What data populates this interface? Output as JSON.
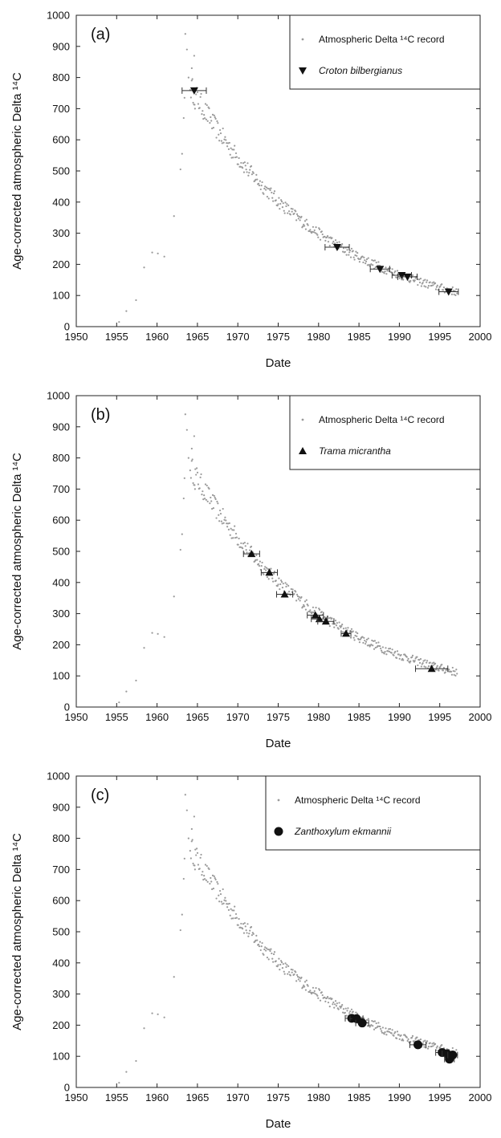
{
  "chart_data": [
    {
      "type": "scatter",
      "panel_label": "(a)",
      "xlabel": "Date",
      "ylabel": "Age-corrected atmospheric Delta ¹⁴C",
      "xlim": [
        1950,
        2000
      ],
      "ylim": [
        0,
        1000
      ],
      "x_ticks": [
        "1950",
        "1955",
        "1960",
        "1965",
        "1970",
        "1975",
        "1980",
        "1985",
        "1990",
        "1995",
        "2000"
      ],
      "y_ticks": [
        "0",
        "100",
        "200",
        "300",
        "400",
        "500",
        "600",
        "700",
        "800",
        "900",
        "1000"
      ],
      "legend": {
        "placement": "top-right",
        "record_label": "Atmospheric Delta ¹⁴C record",
        "species_label": "Croton bilbergianus",
        "marker": "triangle-down"
      },
      "series": [
        {
          "name": "Croton bilbergianus",
          "marker": "triangle-down",
          "points": [
            {
              "x": 1964.6,
              "y": 758,
              "xerr": 1.5
            },
            {
              "x": 1982.3,
              "y": 255,
              "xerr": 1.5
            },
            {
              "x": 1987.6,
              "y": 185,
              "xerr": 1.2
            },
            {
              "x": 1990.3,
              "y": 165,
              "xerr": 1.2
            },
            {
              "x": 1991.0,
              "y": 160,
              "xerr": 1.2
            },
            {
              "x": 1996.1,
              "y": 112,
              "xerr": 1.2
            }
          ]
        }
      ]
    },
    {
      "type": "scatter",
      "panel_label": "(b)",
      "xlabel": "Date",
      "ylabel": "Age-corrected atmospheric Delta ¹⁴C",
      "xlim": [
        1950,
        2000
      ],
      "ylim": [
        0,
        1000
      ],
      "x_ticks": [
        "1950",
        "1955",
        "1960",
        "1965",
        "1970",
        "1975",
        "1980",
        "1985",
        "1990",
        "1995",
        "2000"
      ],
      "y_ticks": [
        "0",
        "100",
        "200",
        "300",
        "400",
        "500",
        "600",
        "700",
        "800",
        "900",
        "1000"
      ],
      "legend": {
        "placement": "top-right",
        "record_label": "Atmospheric Delta ¹⁴C record",
        "species_label": "Trama micrantha",
        "marker": "triangle-up"
      },
      "series": [
        {
          "name": "Trama micrantha",
          "marker": "triangle-up",
          "points": [
            {
              "x": 1971.7,
              "y": 492,
              "xerr": 1.0
            },
            {
              "x": 1973.9,
              "y": 432,
              "xerr": 1.0
            },
            {
              "x": 1975.8,
              "y": 362,
              "xerr": 1.0
            },
            {
              "x": 1979.6,
              "y": 295,
              "xerr": 1.0
            },
            {
              "x": 1980.1,
              "y": 283,
              "xerr": 1.0
            },
            {
              "x": 1980.9,
              "y": 275,
              "xerr": 1.0
            },
            {
              "x": 1983.4,
              "y": 236,
              "xerr": 0.6
            },
            {
              "x": 1994.0,
              "y": 123,
              "xerr": 2.0
            }
          ]
        }
      ]
    },
    {
      "type": "scatter",
      "panel_label": "(c)",
      "xlabel": "Date",
      "ylabel": "Age-corrected atmospheric Delta ¹⁴C",
      "xlim": [
        1950,
        2000
      ],
      "ylim": [
        0,
        1000
      ],
      "x_ticks": [
        "1950",
        "1955",
        "1960",
        "1965",
        "1970",
        "1975",
        "1980",
        "1985",
        "1990",
        "1995",
        "2000"
      ],
      "y_ticks": [
        "0",
        "100",
        "200",
        "300",
        "400",
        "500",
        "600",
        "700",
        "800",
        "900",
        "1000"
      ],
      "legend": {
        "placement": "top-right",
        "record_label": "Atmospheric Delta ¹⁴C record",
        "species_label": "Zanthoxylum ekmannii",
        "marker": "circle"
      },
      "series": [
        {
          "name": "Zanthoxylum ekmannii",
          "marker": "circle",
          "points": [
            {
              "x": 1984.1,
              "y": 222,
              "xerr": 0.8
            },
            {
              "x": 1984.7,
              "y": 221,
              "xerr": 0.8
            },
            {
              "x": 1985.4,
              "y": 207,
              "xerr": 0.8
            },
            {
              "x": 1992.3,
              "y": 137,
              "xerr": 1.0
            },
            {
              "x": 1995.3,
              "y": 112,
              "xerr": 0.8
            },
            {
              "x": 1995.9,
              "y": 108,
              "xerr": 0.6
            },
            {
              "x": 1996.2,
              "y": 91,
              "xerr": 0.6
            },
            {
              "x": 1996.6,
              "y": 104,
              "xerr": 0.6
            }
          ]
        }
      ]
    }
  ]
}
